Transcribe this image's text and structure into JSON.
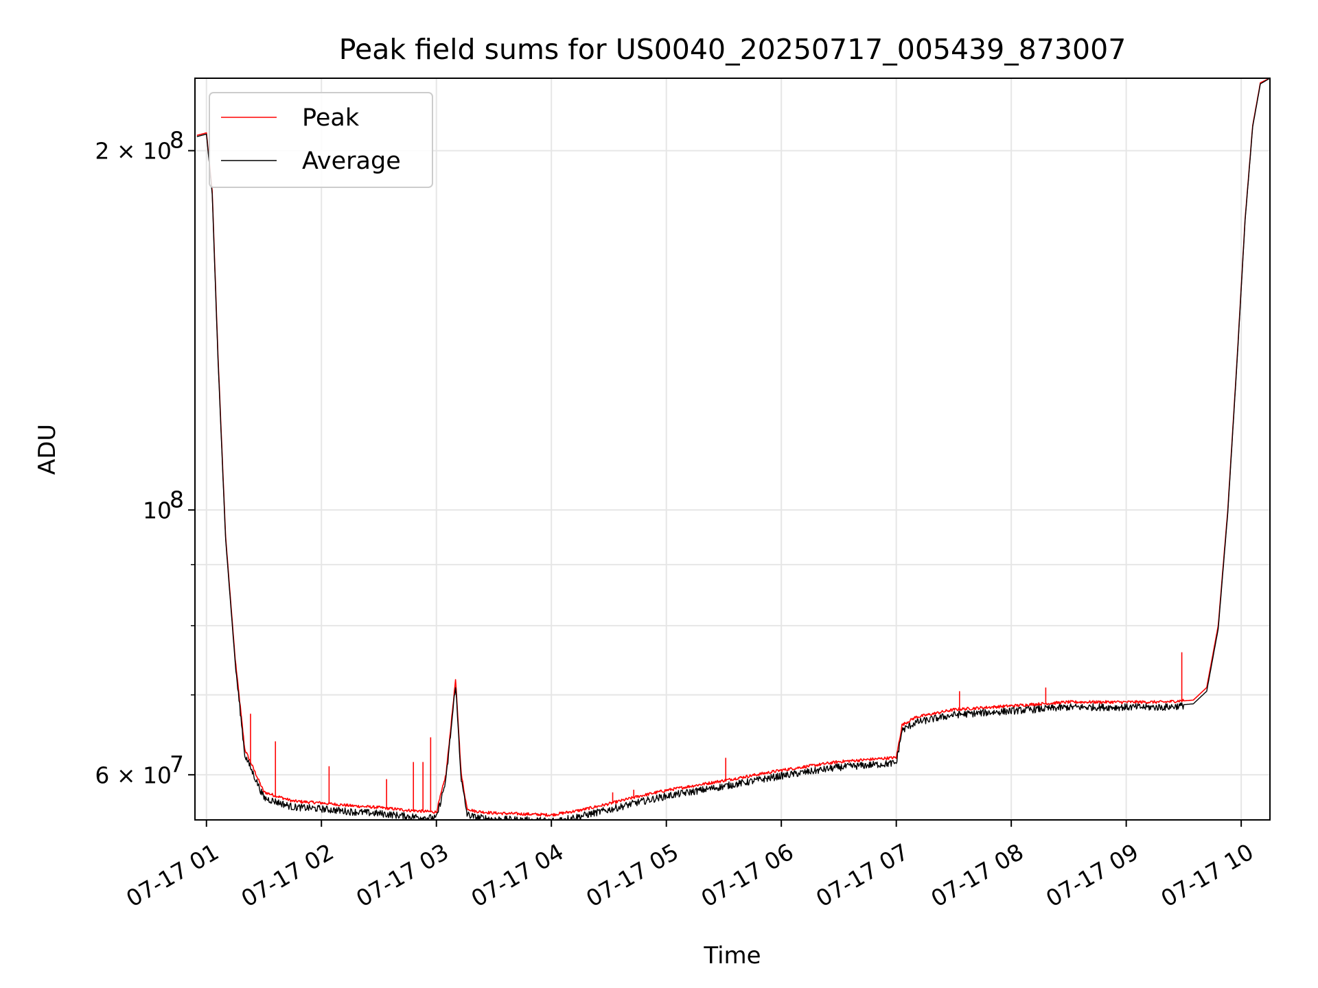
{
  "chart_data": {
    "type": "line",
    "title": "Peak field sums for US0040_20250717_005439_873007",
    "xlabel": "Time",
    "ylabel": "ADU",
    "yscale": "log",
    "ylim": [
      55000000,
      230000000
    ],
    "xlim": [
      "07-17 00:54",
      "07-17 10:15"
    ],
    "grid": true,
    "legend_position": "upper left",
    "x_tick_labels": [
      "07-17 01",
      "07-17 02",
      "07-17 03",
      "07-17 04",
      "07-17 05",
      "07-17 06",
      "07-17 07",
      "07-17 08",
      "07-17 09",
      "07-17 10"
    ],
    "y_tick_labels": [
      {
        "value": 200000000,
        "label_base": "2 × 10",
        "label_exp": "8"
      },
      {
        "value": 100000000,
        "label_base": "10",
        "label_exp": "8"
      },
      {
        "value": 60000000,
        "label_base": "6 × 10",
        "label_exp": "7"
      }
    ],
    "y_minor_ticks": [
      70000000,
      80000000,
      90000000
    ],
    "x": [
      "07-17 00:55",
      "07-17 01:00",
      "07-17 01:03",
      "07-17 01:06",
      "07-17 01:10",
      "07-17 01:15",
      "07-17 01:20",
      "07-17 01:30",
      "07-17 01:45",
      "07-17 02:00",
      "07-17 02:15",
      "07-17 02:30",
      "07-17 02:45",
      "07-17 03:00",
      "07-17 03:05",
      "07-17 03:10",
      "07-17 03:13",
      "07-17 03:16",
      "07-17 03:20",
      "07-17 03:30",
      "07-17 03:45",
      "07-17 04:00",
      "07-17 04:15",
      "07-17 04:30",
      "07-17 04:45",
      "07-17 05:00",
      "07-17 05:30",
      "07-17 06:00",
      "07-17 06:30",
      "07-17 07:00",
      "07-17 07:03",
      "07-17 07:10",
      "07-17 07:30",
      "07-17 08:00",
      "07-17 08:30",
      "07-17 09:00",
      "07-17 09:20",
      "07-17 09:35",
      "07-17 09:42",
      "07-17 09:48",
      "07-17 09:53",
      "07-17 09:58",
      "07-17 10:02",
      "07-17 10:06",
      "07-17 10:10",
      "07-17 10:15"
    ],
    "series": [
      {
        "name": "Peak",
        "color": "#ff0000",
        "values": [
          206000000,
          207000000,
          185000000,
          135000000,
          95000000,
          75000000,
          63000000,
          58000000,
          57000000,
          56800000,
          56500000,
          56300000,
          56000000,
          55800000,
          60000000,
          72000000,
          60000000,
          56200000,
          55900000,
          55700000,
          55600000,
          55500000,
          56000000,
          56700000,
          57500000,
          58200000,
          59300000,
          60500000,
          61500000,
          62000000,
          66000000,
          67000000,
          68000000,
          68500000,
          69000000,
          69000000,
          69000000,
          69300000,
          71000000,
          80000000,
          100000000,
          135000000,
          175000000,
          210000000,
          228000000,
          230000000
        ]
      },
      {
        "name": "Average",
        "color": "#000000",
        "values": [
          205500000,
          206500000,
          184000000,
          134000000,
          94500000,
          74500000,
          62500000,
          57500000,
          56500000,
          56300000,
          56000000,
          55800000,
          55500000,
          55300000,
          59500000,
          71500000,
          59500000,
          55700000,
          55400000,
          55200000,
          55100000,
          55000000,
          55500000,
          56200000,
          57000000,
          57700000,
          58800000,
          60000000,
          61000000,
          61500000,
          65500000,
          66500000,
          67500000,
          68000000,
          68500000,
          68500000,
          68500000,
          68800000,
          70500000,
          79500000,
          99500000,
          134500000,
          174500000,
          209500000,
          227500000,
          230000000
        ]
      }
    ],
    "spikes": [
      {
        "series": "Peak",
        "x": "07-17 01:23",
        "value": 67500000
      },
      {
        "series": "Peak",
        "x": "07-17 01:36",
        "value": 64000000
      },
      {
        "series": "Peak",
        "x": "07-17 02:04",
        "value": 61000000
      },
      {
        "series": "Peak",
        "x": "07-17 02:34",
        "value": 59500000
      },
      {
        "series": "Peak",
        "x": "07-17 02:48",
        "value": 61500000
      },
      {
        "series": "Peak",
        "x": "07-17 02:53",
        "value": 61500000
      },
      {
        "series": "Peak",
        "x": "07-17 02:57",
        "value": 64500000
      },
      {
        "series": "Peak",
        "x": "07-17 04:32",
        "value": 58000000
      },
      {
        "series": "Peak",
        "x": "07-17 04:43",
        "value": 58300000
      },
      {
        "series": "Peak",
        "x": "07-17 05:31",
        "value": 62000000
      },
      {
        "series": "Peak",
        "x": "07-17 07:33",
        "value": 70500000
      },
      {
        "series": "Peak",
        "x": "07-17 08:18",
        "value": 71000000
      },
      {
        "series": "Peak",
        "x": "07-17 09:29",
        "value": 76000000
      }
    ]
  }
}
